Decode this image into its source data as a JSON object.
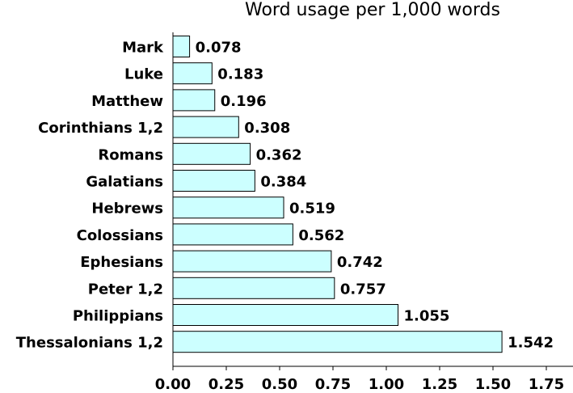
{
  "chart_data": {
    "type": "bar",
    "orientation": "horizontal",
    "title": "Word usage per 1,000 words",
    "xlabel": "",
    "ylabel": "",
    "categories": [
      "Mark",
      "Luke",
      "Matthew",
      "Corinthians 1,2",
      "Romans",
      "Galatians",
      "Hebrews",
      "Colossians",
      "Ephesians",
      "Peter 1,2",
      "Philippians",
      "Thessalonians 1,2"
    ],
    "values": [
      0.078,
      0.183,
      0.196,
      0.308,
      0.362,
      0.384,
      0.519,
      0.562,
      0.742,
      0.757,
      1.055,
      1.542
    ],
    "value_labels": [
      "0.078",
      "0.183",
      "0.196",
      "0.308",
      "0.362",
      "0.384",
      "0.519",
      "0.562",
      "0.742",
      "0.757",
      "1.055",
      "1.542"
    ],
    "xlim": [
      0,
      1.875
    ],
    "xticks": [
      "0.00",
      "0.25",
      "0.50",
      "0.75",
      "1.00",
      "1.25",
      "1.50",
      "1.75"
    ],
    "xtick_values": [
      0,
      0.25,
      0.5,
      0.75,
      1.0,
      1.25,
      1.5,
      1.75
    ],
    "bar_color": "#ccffff",
    "bar_edge_color": "#000000",
    "grid": false,
    "legend": false
  }
}
